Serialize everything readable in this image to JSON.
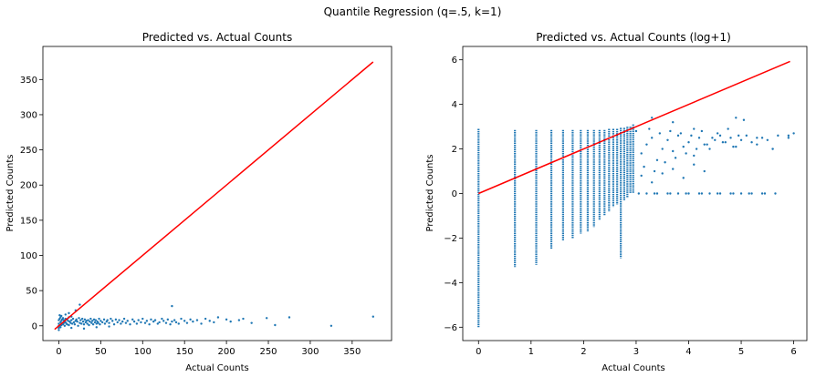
{
  "figure": {
    "suptitle": "Quantile Regression (q=.5, k=1)"
  },
  "colors": {
    "points": "#1f77b4",
    "reference_line": "#ff0000",
    "axes": "#000000"
  },
  "chart_data": [
    {
      "type": "scatter",
      "title": "Predicted vs. Actual Counts",
      "xlabel": "Actual Counts",
      "ylabel": "Predicted Counts",
      "xlim": [
        -19,
        397
      ],
      "ylim": [
        -21,
        397
      ],
      "xticks": [
        0,
        50,
        100,
        150,
        200,
        250,
        300,
        350
      ],
      "yticks": [
        0,
        50,
        100,
        150,
        200,
        250,
        300,
        350
      ],
      "reference_line": {
        "x": [
          -5,
          375
        ],
        "y": [
          -5,
          375
        ]
      },
      "points": {
        "x": [
          0,
          0,
          0,
          0,
          0,
          1,
          1,
          1,
          2,
          2,
          2,
          3,
          3,
          3,
          4,
          4,
          5,
          5,
          6,
          6,
          7,
          7,
          8,
          8,
          9,
          10,
          10,
          11,
          12,
          12,
          13,
          14,
          15,
          15,
          16,
          17,
          18,
          19,
          20,
          21,
          22,
          23,
          24,
          25,
          26,
          27,
          28,
          29,
          30,
          31,
          32,
          33,
          34,
          35,
          36,
          37,
          38,
          39,
          40,
          41,
          42,
          43,
          44,
          45,
          46,
          47,
          48,
          49,
          50,
          52,
          54,
          55,
          57,
          58,
          60,
          62,
          64,
          66,
          68,
          70,
          72,
          74,
          76,
          78,
          80,
          82,
          85,
          88,
          90,
          93,
          95,
          98,
          100,
          103,
          105,
          108,
          110,
          113,
          115,
          118,
          120,
          123,
          125,
          128,
          130,
          133,
          135,
          138,
          140,
          143,
          146,
          150,
          153,
          157,
          160,
          165,
          170,
          175,
          180,
          185,
          190,
          200,
          205,
          215,
          220,
          230,
          248,
          258,
          275,
          325,
          375,
          135,
          12,
          20,
          25,
          8,
          15,
          30,
          45,
          60
        ],
        "y": [
          0,
          -3,
          -6,
          3,
          8,
          0,
          10,
          15,
          -2,
          5,
          12,
          1,
          7,
          14,
          3,
          9,
          2,
          11,
          4,
          8,
          0,
          6,
          5,
          10,
          3,
          2,
          9,
          7,
          1,
          12,
          6,
          4,
          8,
          13,
          3,
          10,
          5,
          2,
          7,
          9,
          6,
          0,
          11,
          4,
          8,
          3,
          10,
          6,
          2,
          9,
          5,
          7,
          3,
          8,
          1,
          6,
          10,
          4,
          7,
          2,
          9,
          5,
          8,
          3,
          6,
          4,
          10,
          2,
          7,
          5,
          9,
          3,
          6,
          8,
          4,
          10,
          7,
          2,
          9,
          5,
          8,
          3,
          6,
          10,
          4,
          7,
          2,
          9,
          6,
          3,
          8,
          5,
          10,
          4,
          7,
          2,
          9,
          6,
          8,
          3,
          5,
          10,
          7,
          4,
          9,
          2,
          6,
          8,
          5,
          3,
          10,
          7,
          4,
          9,
          6,
          8,
          3,
          10,
          7,
          5,
          12,
          9,
          6,
          8,
          10,
          4,
          11,
          1,
          12,
          0,
          13,
          28,
          18,
          22,
          30,
          16,
          -3,
          -4,
          -2,
          -1
        ]
      }
    },
    {
      "type": "scatter",
      "title": "Predicted vs. Actual Counts (log+1)",
      "xlabel": "Actual Counts",
      "ylabel": "Predicted Counts",
      "xlim": [
        -0.3,
        6.25
      ],
      "ylim": [
        -6.6,
        6.6
      ],
      "xticks": [
        0,
        1,
        2,
        3,
        4,
        5,
        6
      ],
      "yticks": [
        -6,
        -4,
        -2,
        0,
        2,
        4,
        6
      ],
      "reference_line": {
        "x": [
          0,
          5.93
        ],
        "y": [
          0,
          5.93
        ]
      },
      "columns": {
        "x": [
          0,
          0.693,
          1.099,
          1.386,
          1.609,
          1.792,
          1.946,
          2.079,
          2.197,
          2.303,
          2.398,
          2.485,
          2.565,
          2.639,
          2.708,
          2.773,
          2.833,
          2.89,
          2.944
        ],
        "ymin": [
          -6.0,
          -3.3,
          -3.2,
          -2.5,
          -2.1,
          -2.0,
          -1.8,
          -1.7,
          -1.5,
          -1.2,
          -1.0,
          -0.8,
          -0.6,
          -0.5,
          -2.9,
          -0.3,
          -0.2,
          0.0,
          0.0
        ],
        "ymax": [
          2.9,
          2.85,
          2.85,
          2.85,
          2.85,
          2.85,
          2.85,
          2.85,
          2.85,
          2.85,
          2.85,
          2.9,
          2.9,
          2.9,
          2.95,
          2.95,
          3.0,
          3.0,
          3.1
        ]
      },
      "points": {
        "x": [
          3.1,
          3.2,
          3.3,
          3.4,
          3.5,
          3.6,
          3.7,
          3.8,
          3.9,
          4.0,
          4.1,
          4.2,
          4.3,
          4.4,
          4.5,
          4.6,
          4.7,
          4.8,
          4.9,
          5.0,
          5.1,
          5.2,
          5.3,
          5.4,
          5.5,
          5.6,
          5.7,
          5.9,
          3.0,
          3.15,
          3.25,
          3.35,
          3.45,
          3.55,
          3.65,
          3.75,
          3.85,
          3.95,
          4.05,
          4.15,
          4.25,
          4.35,
          4.45,
          4.55,
          4.65,
          4.75,
          4.85,
          4.95,
          5.05,
          3.1,
          3.3,
          3.5,
          3.7,
          3.9,
          4.1,
          4.3,
          3.2,
          3.4,
          3.6,
          3.8,
          4.0,
          4.2,
          4.4,
          4.6,
          4.8,
          5.0,
          5.2,
          5.4,
          3.05,
          3.35,
          3.65,
          3.95,
          4.25,
          4.55,
          4.85,
          5.15,
          5.45,
          5.65,
          5.9,
          6.0,
          3.3,
          3.7,
          4.1,
          4.9,
          5.3,
          5.6
        ],
        "y": [
          1.8,
          2.2,
          2.5,
          1.5,
          2.0,
          2.4,
          1.9,
          2.6,
          2.1,
          2.3,
          1.7,
          2.5,
          2.2,
          2.0,
          2.4,
          2.6,
          2.3,
          2.5,
          2.1,
          2.4,
          2.6,
          2.3,
          2.2,
          2.5,
          2.4,
          2.0,
          2.6,
          2.5,
          2.8,
          1.2,
          2.9,
          1.0,
          2.7,
          1.4,
          2.8,
          1.6,
          2.7,
          1.8,
          2.6,
          2.0,
          2.8,
          2.2,
          2.5,
          2.7,
          2.3,
          2.9,
          2.1,
          2.6,
          3.3,
          0.8,
          0.5,
          0.9,
          1.1,
          0.7,
          1.3,
          1.0,
          0,
          0,
          0,
          0,
          0,
          0,
          0,
          0,
          0,
          0,
          0,
          0,
          0,
          0,
          0,
          0,
          0,
          0,
          0,
          0,
          0,
          0,
          2.6,
          2.7,
          3.4,
          3.2,
          2.9,
          3.4,
          2.5,
          2.0
        ]
      }
    }
  ]
}
